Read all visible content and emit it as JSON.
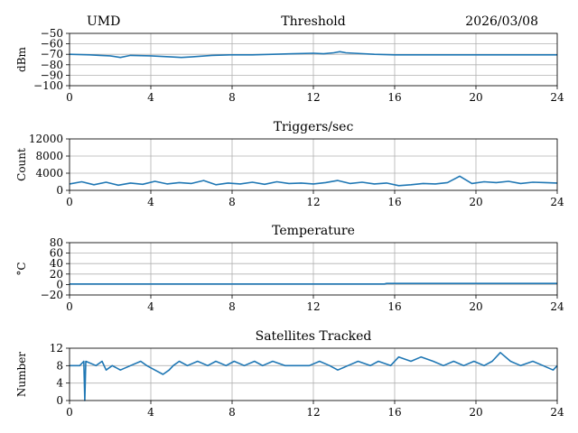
{
  "header": {
    "site": "UMD",
    "date": "2026/03/08"
  },
  "colors": {
    "series": "#1f77b4",
    "grid": "#b0b0b0"
  },
  "chart_data": [
    {
      "type": "line",
      "title": "Threshold",
      "xlabel": "",
      "ylabel": "dBm",
      "xlim": [
        0,
        24
      ],
      "ylim": [
        -100,
        -50
      ],
      "xticks": [
        0,
        4,
        8,
        12,
        16,
        20,
        24
      ],
      "yticks": [
        -100,
        -90,
        -80,
        -70,
        -60,
        -50
      ],
      "ytick_labels": [
        "−100",
        "−90",
        "−80",
        "−70",
        "−60",
        "−50"
      ],
      "grid": true,
      "series": [
        {
          "x": [
            0,
            1,
            1.5,
            2,
            2.5,
            3,
            4,
            5,
            5.5,
            6,
            7,
            8,
            9,
            10,
            11,
            12,
            12.5,
            13,
            13.3,
            13.6,
            14,
            15,
            16,
            17,
            18,
            19,
            20,
            21,
            22,
            23,
            24
          ],
          "values": [
            -70,
            -70.5,
            -71,
            -71.5,
            -73,
            -71,
            -71.5,
            -72.5,
            -73,
            -72.5,
            -71,
            -70.5,
            -70.5,
            -70,
            -69.5,
            -69,
            -69.5,
            -68.5,
            -67.5,
            -68.5,
            -69,
            -70,
            -70.5,
            -70.5,
            -70.5,
            -70.5,
            -70.5,
            -70.5,
            -70.5,
            -70.5,
            -70.5
          ]
        }
      ]
    },
    {
      "type": "line",
      "title": "Triggers/sec",
      "xlabel": "",
      "ylabel": "Count",
      "xlim": [
        0,
        24
      ],
      "ylim": [
        0,
        12000
      ],
      "xticks": [
        0,
        4,
        8,
        12,
        16,
        20,
        24
      ],
      "yticks": [
        0,
        4000,
        8000,
        12000
      ],
      "ytick_labels": [
        "0",
        "4000",
        "8000",
        "12000"
      ],
      "grid": true,
      "series": [
        {
          "x": [
            0,
            0.6,
            1.2,
            1.8,
            2.4,
            3,
            3.6,
            4.2,
            4.8,
            5.4,
            6,
            6.6,
            7.2,
            7.8,
            8.4,
            9,
            9.6,
            10.2,
            10.8,
            11.4,
            12,
            12.6,
            13.2,
            13.8,
            14.4,
            15,
            15.6,
            16.2,
            16.8,
            17.4,
            18,
            18.6,
            19.2,
            19.8,
            20.4,
            21,
            21.6,
            22.2,
            22.8,
            23.4,
            24
          ],
          "values": [
            1500,
            2000,
            1300,
            1900,
            1200,
            1700,
            1400,
            2100,
            1500,
            1800,
            1600,
            2300,
            1300,
            1700,
            1500,
            1900,
            1400,
            2000,
            1600,
            1700,
            1500,
            1800,
            2300,
            1600,
            1900,
            1500,
            1700,
            1100,
            1300,
            1600,
            1500,
            1800,
            3300,
            1600,
            2000,
            1800,
            2100,
            1600,
            1900,
            1800,
            1700
          ]
        }
      ]
    },
    {
      "type": "line",
      "title": "Temperature",
      "xlabel": "",
      "ylabel": "°C",
      "xlim": [
        0,
        24
      ],
      "ylim": [
        -20,
        80
      ],
      "xticks": [
        0,
        4,
        8,
        12,
        16,
        20,
        24
      ],
      "yticks": [
        -20,
        0,
        20,
        40,
        60,
        80
      ],
      "ytick_labels": [
        "−20",
        "0",
        "20",
        "40",
        "60",
        "80"
      ],
      "grid": true,
      "series": [
        {
          "x": [
            0,
            15.5,
            15.6,
            24
          ],
          "values": [
            1,
            1,
            2,
            2
          ]
        }
      ]
    },
    {
      "type": "line",
      "title": "Satellites Tracked",
      "xlabel": "",
      "ylabel": "Number",
      "xlim": [
        0,
        24
      ],
      "ylim": [
        0,
        12
      ],
      "xticks": [
        0,
        4,
        8,
        12,
        16,
        20,
        24
      ],
      "yticks": [
        0,
        4,
        8,
        12
      ],
      "ytick_labels": [
        "0",
        "4",
        "8",
        "12"
      ],
      "grid": true,
      "series": [
        {
          "x": [
            0,
            0.5,
            0.7,
            0.75,
            0.8,
            1.3,
            1.6,
            1.8,
            2.1,
            2.5,
            3,
            3.5,
            3.8,
            4.2,
            4.6,
            4.9,
            5.1,
            5.4,
            5.8,
            6.3,
            6.8,
            7.2,
            7.7,
            8.1,
            8.6,
            9.1,
            9.5,
            10,
            10.6,
            11.2,
            11.8,
            12.3,
            12.8,
            13.2,
            13.7,
            14.2,
            14.8,
            15.2,
            15.8,
            16.2,
            16.8,
            17.3,
            17.9,
            18.4,
            18.9,
            19.4,
            19.9,
            20.4,
            20.8,
            21.2,
            21.7,
            22.2,
            22.8,
            23.3,
            23.8,
            24
          ],
          "values": [
            8,
            8,
            9,
            0,
            9,
            8,
            9,
            7,
            8,
            7,
            8,
            9,
            8,
            7,
            6,
            7,
            8,
            9,
            8,
            9,
            8,
            9,
            8,
            9,
            8,
            9,
            8,
            9,
            8,
            8,
            8,
            9,
            8,
            7,
            8,
            9,
            8,
            9,
            8,
            10,
            9,
            10,
            9,
            8,
            9,
            8,
            9,
            8,
            9,
            11,
            9,
            8,
            9,
            8,
            7,
            8
          ]
        }
      ]
    }
  ]
}
